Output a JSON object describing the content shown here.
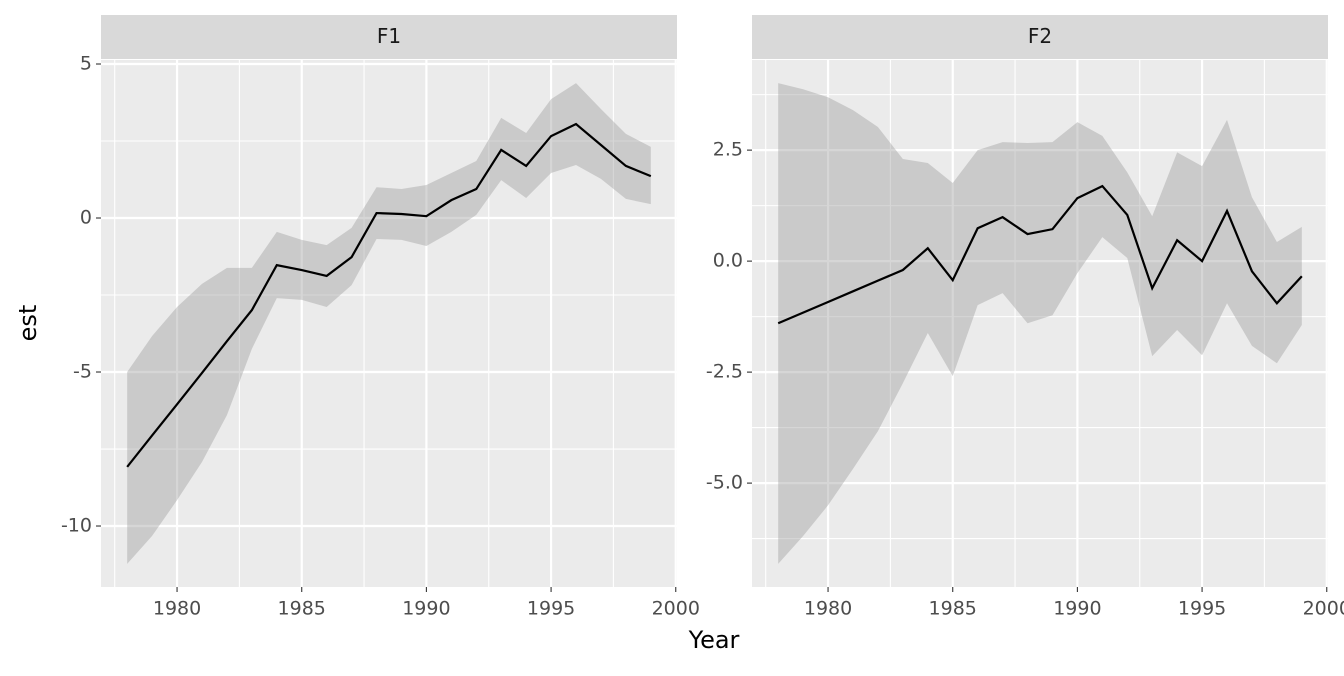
{
  "x_label": "Year",
  "y_label": "est",
  "chart_data": [
    {
      "type": "ribbon-line",
      "title": "F1",
      "x": [
        1978,
        1979,
        1980,
        1981,
        1982,
        1983,
        1984,
        1985,
        1986,
        1987,
        1988,
        1989,
        1990,
        1991,
        1992,
        1993,
        1994,
        1995,
        1996,
        1997,
        1998,
        1999
      ],
      "values": [
        -8.08,
        -7.06,
        -6.05,
        -5.03,
        -4.0,
        -2.99,
        -1.53,
        -1.69,
        -1.88,
        -1.27,
        0.16,
        0.13,
        0.06,
        0.58,
        0.94,
        2.21,
        1.69,
        2.66,
        3.05,
        2.37,
        1.69,
        1.36
      ],
      "lower": [
        -11.23,
        -10.32,
        -9.16,
        -7.92,
        -6.4,
        -4.25,
        -2.6,
        -2.66,
        -2.89,
        -2.18,
        -0.68,
        -0.71,
        -0.91,
        -0.45,
        0.1,
        1.23,
        0.65,
        1.46,
        1.72,
        1.27,
        0.62,
        0.45
      ],
      "upper": [
        -5.0,
        -3.83,
        -2.89,
        -2.14,
        -1.62,
        -1.62,
        -0.45,
        -0.71,
        -0.88,
        -0.32,
        1.0,
        0.94,
        1.07,
        1.46,
        1.85,
        3.25,
        2.76,
        3.86,
        4.38,
        3.54,
        2.73,
        2.31
      ],
      "color": "#000000",
      "ribbon_color": "#999999",
      "xlim": [
        1976.95,
        2000.05
      ],
      "xticks": [
        1980,
        1985,
        1990,
        1995,
        2000
      ],
      "ylim": [
        -11.98,
        5.13
      ],
      "yticks": [
        5,
        0,
        -5,
        -10
      ],
      "grid": true
    },
    {
      "type": "ribbon-line",
      "title": "F2",
      "x": [
        1978,
        1979,
        1980,
        1981,
        1982,
        1983,
        1984,
        1985,
        1986,
        1987,
        1988,
        1989,
        1990,
        1991,
        1992,
        1993,
        1994,
        1995,
        1996,
        1997,
        1998,
        1999
      ],
      "values": [
        -1.4,
        -1.16,
        -0.92,
        -0.68,
        -0.44,
        -0.2,
        0.29,
        -0.43,
        0.74,
        0.99,
        0.61,
        0.72,
        1.42,
        1.69,
        1.04,
        -0.61,
        0.47,
        0.0,
        1.13,
        -0.23,
        -0.95,
        -0.34
      ],
      "lower": [
        -6.82,
        -6.19,
        -5.5,
        -4.68,
        -3.83,
        -2.75,
        -1.62,
        -2.59,
        -0.99,
        -0.72,
        -1.4,
        -1.22,
        -0.27,
        0.54,
        0.07,
        -2.14,
        -1.55,
        -2.12,
        -0.95,
        -1.91,
        -2.3,
        -1.44
      ],
      "upper": [
        4.01,
        3.87,
        3.69,
        3.4,
        3.02,
        2.3,
        2.21,
        1.76,
        2.5,
        2.68,
        2.66,
        2.68,
        3.13,
        2.82,
        2.0,
        1.01,
        2.45,
        2.14,
        3.18,
        1.44,
        0.43,
        0.77
      ],
      "color": "#000000",
      "ribbon_color": "#999999",
      "xlim": [
        1976.95,
        2000.05
      ],
      "xticks": [
        1980,
        1985,
        1990,
        1995,
        2000
      ],
      "ylim": [
        -7.34,
        4.53
      ],
      "yticks": [
        2.5,
        {
          "value": 0,
          "label": "0.0"
        },
        -2.5,
        {
          "value": -5,
          "label": "-5.0"
        }
      ],
      "grid": true
    }
  ]
}
